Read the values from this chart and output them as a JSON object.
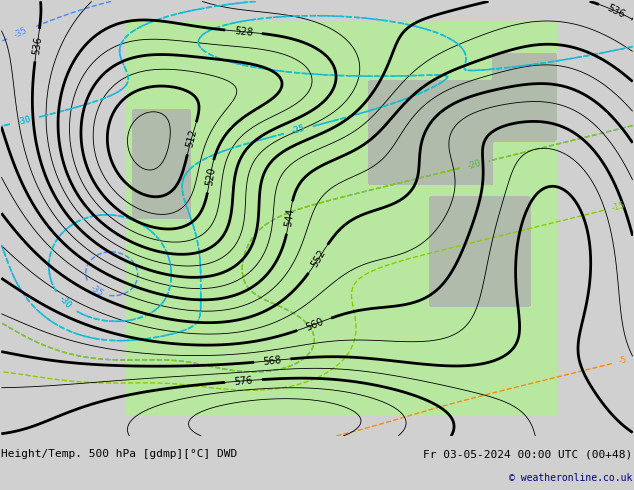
{
  "title_left": "Height/Temp. 500 hPa [gdmp][°C] DWD",
  "title_right": "Fr 03-05-2024 00:00 UTC (00+48)",
  "copyright": "© weatheronline.co.uk",
  "bg_color": "#d0d0d0",
  "green_color": "#b8e8a0",
  "gray_color": "#b0b0b0",
  "figsize": [
    6.34,
    4.9
  ],
  "dpi": 100,
  "height_contour_color": "black",
  "temp_color_warm": "#ff8800",
  "temp_color_cold": "#4488ff",
  "temp_color_cyan": "#00cccc",
  "temp_color_green": "#88cc00",
  "temp_color_red": "#ff2200",
  "font_size_labels": 7,
  "font_size_title": 8,
  "font_size_copyright": 7
}
